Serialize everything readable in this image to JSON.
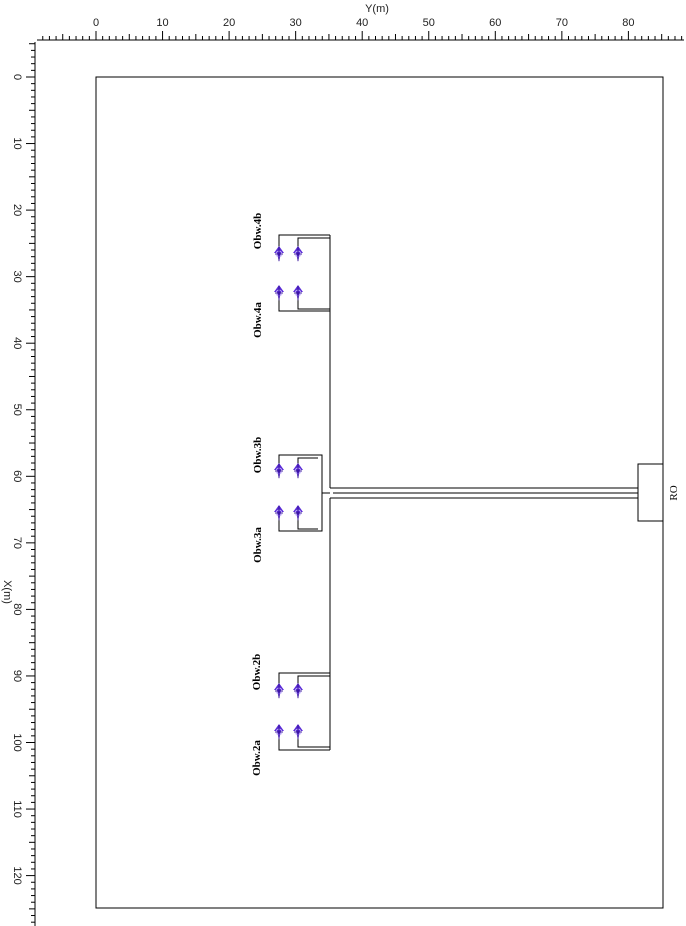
{
  "axes": {
    "y_axis_title": "Y(m)",
    "x_axis_title": "X(m)",
    "top_ticks": [
      "0",
      "10",
      "20",
      "30",
      "40",
      "50",
      "60",
      "70",
      "80"
    ],
    "left_ticks": [
      "0",
      "10",
      "20",
      "30",
      "40",
      "50",
      "60",
      "70",
      "80",
      "90",
      "100",
      "110",
      "120"
    ]
  },
  "wells": [
    {
      "label": "Obw.4b"
    },
    {
      "label": "Obw.4a"
    },
    {
      "label": "Obw.3b"
    },
    {
      "label": "Obw.3a"
    },
    {
      "label": "Obw.2b"
    },
    {
      "label": "Obw.2a"
    }
  ],
  "ro_unit": {
    "label": "RO"
  },
  "colors": {
    "well_marker": "#5a2bd6",
    "line": "#000000"
  }
}
